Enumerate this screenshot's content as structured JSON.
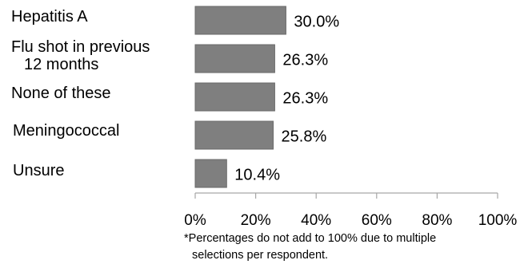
{
  "chart_data": {
    "type": "bar",
    "orientation": "horizontal",
    "categories": [
      {
        "line1": "Hepatitis A",
        "line2": ""
      },
      {
        "line1": "Flu shot in previous",
        "line2": "12 months"
      },
      {
        "line1": "None of these",
        "line2": ""
      },
      {
        "line1": "Meningococcal",
        "line2": ""
      },
      {
        "line1": "Unsure",
        "line2": ""
      }
    ],
    "values": [
      30.0,
      26.3,
      26.3,
      25.8,
      10.4
    ],
    "value_labels": [
      "30.0%",
      "26.3%",
      "26.3%",
      "25.8%",
      "10.4%"
    ],
    "xlim": [
      0,
      100
    ],
    "xticks": [
      0,
      20,
      40,
      60,
      80,
      100
    ],
    "xtick_labels": [
      "0%",
      "20%",
      "40%",
      "60%",
      "80%",
      "100%"
    ],
    "grid": false,
    "legend": "none",
    "bar_color": "#7f7f7f",
    "footnote_line1": "*Percentages do not add to 100% due to multiple",
    "footnote_line2": "selections per respondent."
  }
}
